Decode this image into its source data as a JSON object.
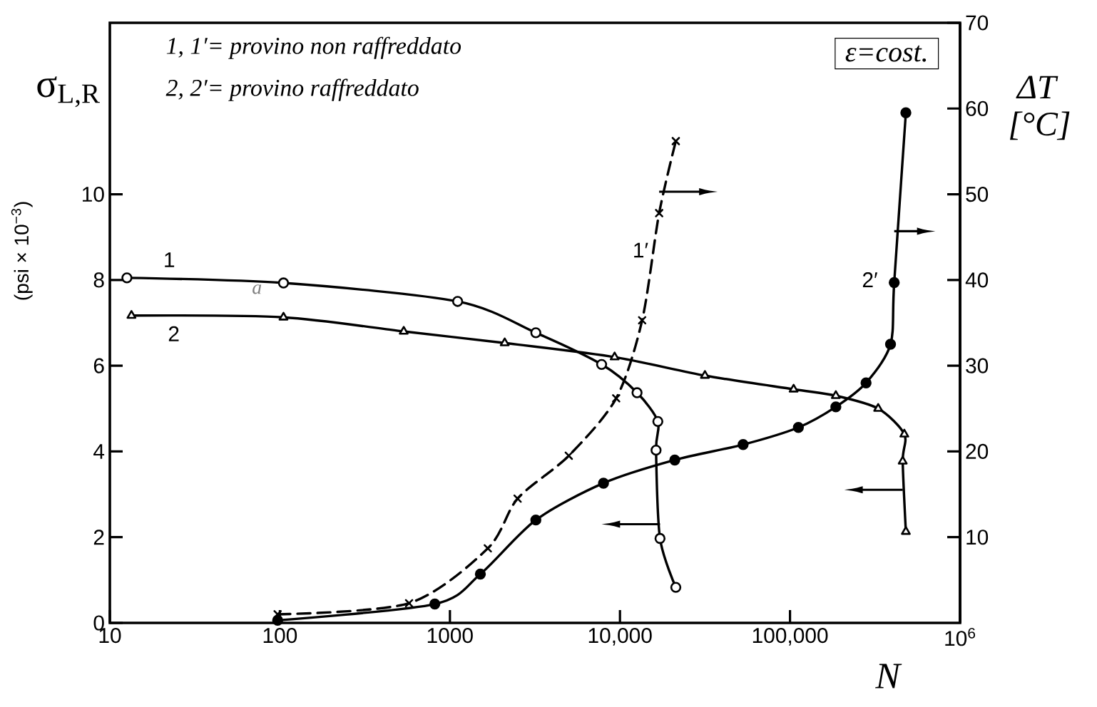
{
  "chart_data": {
    "type": "line",
    "xlabel": "N",
    "ylabel": "(psi × 10$^{−3}$)",
    "y2label": "ΔT [°C]",
    "log": "x",
    "xlim": [
      10,
      1000000
    ],
    "xticks": [
      10,
      100,
      1000,
      {
        "value": 10000,
        "label": "10,000"
      },
      {
        "value": 100000,
        "label": "100,000"
      },
      {
        "value": 1000000,
        "label": "10$^{6}$"
      }
    ],
    "ylim": [
      0,
      14
    ],
    "yticks": [
      0,
      2,
      4,
      6,
      8,
      10
    ],
    "y2lim": [
      0,
      70
    ],
    "y2ticks": [
      10,
      20,
      30,
      40,
      50,
      60,
      70
    ],
    "grid": false,
    "annotations": [
      "1, 1′= provino non raffreddato",
      "2, 2′= provino raffreddato",
      "ε=cost.",
      "σ$_{L,R}$",
      "a"
    ],
    "series": [
      {
        "name": "1",
        "color": "#000000",
        "marker": "circle",
        "line_style": "solid",
        "x": [
          12.6,
          105,
          1110,
          3200,
          7800,
          12600,
          16700,
          16300,
          17200,
          21300
        ],
        "values": [
          8.05,
          7.93,
          7.5,
          6.77,
          6.03,
          5.37,
          4.7,
          4.03,
          1.97,
          0.83
        ]
      },
      {
        "name": "2",
        "color": "#000000",
        "marker": "triangle",
        "line_style": "solid",
        "x": [
          13.4,
          105,
          535,
          2100,
          9300,
          31600,
          105000,
          186000,
          330000,
          470000,
          460000,
          480000
        ],
        "values": [
          7.17,
          7.13,
          6.8,
          6.53,
          6.2,
          5.77,
          5.45,
          5.3,
          5.0,
          4.4,
          3.77,
          2.13
        ]
      },
      {
        "name": "1′",
        "color": "#000000",
        "marker": "cross",
        "line_style": "dashed",
        "axis": "y2",
        "x": [
          97,
          575,
          1670,
          2500,
          5000,
          9500,
          13500,
          17000,
          21300
        ],
        "values": [
          1,
          2.3,
          8.7,
          14.5,
          19.5,
          26.2,
          35.3,
          47.8,
          56.2
        ]
      },
      {
        "name": "2′",
        "color": "#000000",
        "marker": "dot",
        "line_style": "solid",
        "axis": "y2",
        "x": [
          97,
          815,
          1510,
          3200,
          8000,
          21000,
          53000,
          112000,
          186000,
          280000,
          390000,
          410000,
          480000
        ],
        "values": [
          0.3,
          2.2,
          5.7,
          12,
          16.3,
          19,
          20.8,
          22.8,
          25.2,
          28,
          32.5,
          39.7,
          59.5
        ]
      }
    ]
  }
}
